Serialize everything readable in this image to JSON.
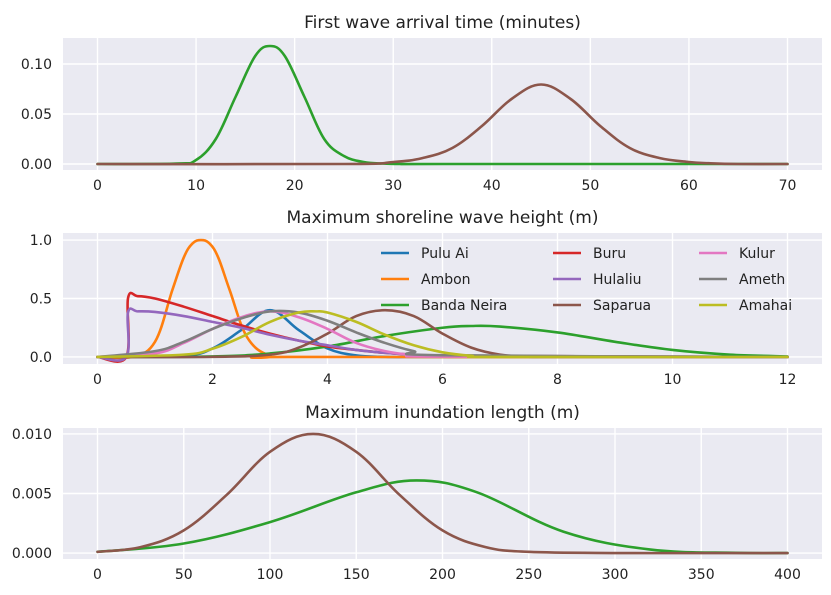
{
  "chart_data": [
    {
      "type": "line",
      "title": "First wave arrival time (minutes)",
      "xlabel": "",
      "ylabel": "",
      "xlim": [
        -3.5,
        73.5
      ],
      "ylim": [
        -0.006,
        0.126
      ],
      "xticks": [
        0,
        10,
        20,
        30,
        40,
        50,
        60,
        70
      ],
      "yticks": [
        0.0,
        0.05,
        0.1
      ],
      "ytick_labels": [
        "0.00",
        "0.05",
        "0.10"
      ],
      "grid": true,
      "series": [
        {
          "color": "#2ca02c",
          "x": [
            0,
            8,
            10,
            12,
            14,
            16,
            17.5,
            19,
            21,
            23,
            25,
            27,
            29,
            31,
            35,
            70
          ],
          "y": [
            0,
            0.0004,
            0.004,
            0.025,
            0.067,
            0.108,
            0.118,
            0.108,
            0.067,
            0.025,
            0.008,
            0.002,
            0.0004,
            0,
            0,
            0
          ]
        },
        {
          "color": "#8c564b",
          "x": [
            0,
            25,
            30,
            33,
            36,
            39,
            42,
            45,
            48,
            51,
            54,
            57,
            60,
            62,
            65,
            70
          ],
          "y": [
            0,
            0,
            0.002,
            0.006,
            0.016,
            0.038,
            0.065,
            0.0795,
            0.065,
            0.038,
            0.016,
            0.006,
            0.002,
            0.0008,
            0,
            0
          ]
        }
      ]
    },
    {
      "type": "line",
      "title": "Maximum shoreline wave height (m)",
      "xlabel": "",
      "ylabel": "",
      "xlim": [
        -0.6,
        12.6
      ],
      "ylim": [
        -0.06,
        1.06
      ],
      "xticks": [
        0,
        2,
        4,
        6,
        8,
        10,
        12
      ],
      "yticks": [
        0.0,
        0.5,
        1.0
      ],
      "ytick_labels": [
        "0.0",
        "0.5",
        "1.0"
      ],
      "grid": true,
      "legend": {
        "position": "top-right",
        "columns": 3
      },
      "series": [
        {
          "name": "Pulu Ai",
          "color": "#1f77b4",
          "x": [
            0,
            1.5,
            2,
            2.5,
            3,
            3.5,
            4,
            4.5,
            5,
            5.5,
            6,
            12
          ],
          "y": [
            0,
            0.013,
            0.073,
            0.23,
            0.4,
            0.23,
            0.073,
            0.013,
            0.001,
            0,
            0,
            0
          ]
        },
        {
          "name": "Ambon",
          "color": "#ff7f0e",
          "x": [
            0,
            0.6,
            1.0,
            1.3,
            1.5,
            1.65,
            1.8,
            1.95,
            2.1,
            2.3,
            2.6,
            3.0,
            3.5,
            12
          ],
          "y": [
            0,
            0.001,
            0.13,
            0.57,
            0.85,
            0.97,
            1.0,
            0.97,
            0.85,
            0.57,
            0.17,
            0.01,
            0,
            0
          ]
        },
        {
          "name": "Banda Neira",
          "color": "#2ca02c",
          "x": [
            0,
            2,
            3,
            4,
            5,
            6,
            6.5,
            7,
            8,
            9,
            10,
            11,
            12
          ],
          "y": [
            0,
            0.005,
            0.03,
            0.09,
            0.18,
            0.25,
            0.265,
            0.26,
            0.21,
            0.13,
            0.06,
            0.02,
            0.005
          ]
        },
        {
          "name": "Buru",
          "color": "#d62728",
          "x": [
            0,
            0.5,
            0.53,
            0.7,
            1.0,
            1.5,
            2,
            2.5,
            3,
            3.5,
            4,
            4.5,
            5,
            5.5,
            6,
            12
          ],
          "y": [
            0,
            0,
            0.5,
            0.52,
            0.5,
            0.43,
            0.35,
            0.27,
            0.2,
            0.14,
            0.09,
            0.06,
            0.035,
            0.02,
            0.01,
            0
          ]
        },
        {
          "name": "Hulaliu",
          "color": "#9467bd",
          "x": [
            0,
            0.5,
            0.53,
            0.7,
            1.0,
            1.5,
            2,
            2.5,
            3,
            3.5,
            4,
            4.5,
            5,
            5.5,
            6,
            12
          ],
          "y": [
            0,
            0,
            0.38,
            0.39,
            0.385,
            0.35,
            0.3,
            0.25,
            0.19,
            0.14,
            0.1,
            0.06,
            0.035,
            0.02,
            0.01,
            0
          ]
        },
        {
          "name": "Saparua",
          "color": "#8c564b",
          "x": [
            0,
            2,
            3,
            3.5,
            4,
            4.5,
            5,
            5.5,
            6,
            6.5,
            7,
            7.5,
            8,
            12
          ],
          "y": [
            0,
            0.001,
            0.02,
            0.08,
            0.2,
            0.35,
            0.4,
            0.35,
            0.2,
            0.08,
            0.02,
            0.004,
            0,
            0
          ]
        },
        {
          "name": "Kulur",
          "color": "#e377c2",
          "x": [
            0,
            1,
            1.5,
            2,
            2.5,
            3,
            3.5,
            4,
            4.5,
            5,
            5.5,
            6,
            12
          ],
          "y": [
            0,
            0.03,
            0.12,
            0.24,
            0.34,
            0.39,
            0.34,
            0.24,
            0.12,
            0.05,
            0.015,
            0.003,
            0
          ]
        },
        {
          "name": "Ameth",
          "color": "#7f7f7f",
          "x": [
            0,
            1,
            1.5,
            2,
            2.5,
            3,
            3.5,
            4,
            4.5,
            5,
            5.5,
            6,
            12
          ],
          "y": [
            0,
            0.05,
            0.13,
            0.24,
            0.33,
            0.39,
            0.38,
            0.31,
            0.21,
            0.12,
            0.05,
            0.015,
            0
          ]
        },
        {
          "name": "Amahai",
          "color": "#bcbd22",
          "x": [
            0,
            1.5,
            2,
            2.5,
            3,
            3.5,
            3.8,
            4,
            4.5,
            5,
            5.5,
            6,
            6.5,
            7,
            12
          ],
          "y": [
            0,
            0.02,
            0.07,
            0.17,
            0.3,
            0.38,
            0.39,
            0.38,
            0.3,
            0.19,
            0.1,
            0.04,
            0.01,
            0,
            0
          ]
        }
      ]
    },
    {
      "type": "line",
      "title": "Maximum inundation length (m)",
      "xlabel": "",
      "ylabel": "",
      "xlim": [
        -20,
        420
      ],
      "ylim": [
        -0.0005,
        0.0105
      ],
      "xticks": [
        0,
        50,
        100,
        150,
        200,
        250,
        300,
        350,
        400
      ],
      "yticks": [
        0.0,
        0.005,
        0.01
      ],
      "ytick_labels": [
        "0.000",
        "0.005",
        "0.010"
      ],
      "grid": true,
      "series": [
        {
          "color": "#2ca02c",
          "x": [
            0,
            50,
            100,
            150,
            185,
            220,
            270,
            320,
            370,
            400
          ],
          "y": [
            0.0001,
            0.0008,
            0.0026,
            0.0051,
            0.0061,
            0.0051,
            0.0018,
            0.0003,
            2e-05,
            0
          ]
        },
        {
          "color": "#8c564b",
          "x": [
            0,
            25,
            50,
            75,
            100,
            125,
            150,
            175,
            200,
            225,
            250,
            300,
            350,
            400
          ],
          "y": [
            0.0001,
            0.0005,
            0.0019,
            0.0049,
            0.0085,
            0.01,
            0.0085,
            0.0049,
            0.0019,
            0.0005,
            0.0001,
            0,
            0,
            0
          ]
        }
      ]
    }
  ]
}
